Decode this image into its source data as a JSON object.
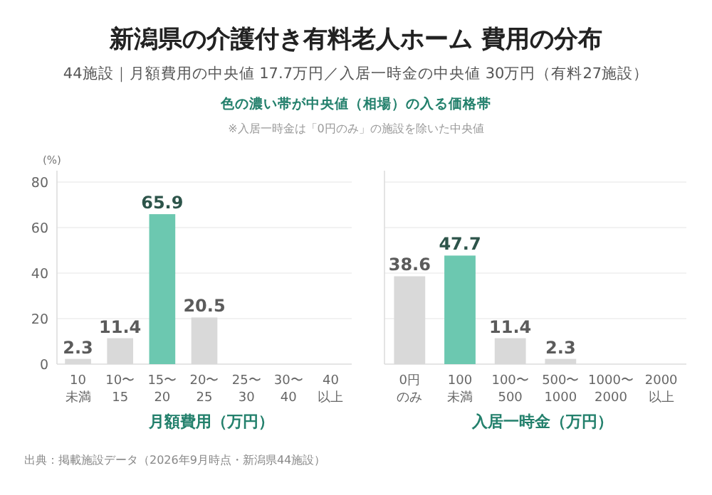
{
  "chart_data": [
    {
      "type": "bar",
      "title": "新潟県の介護付き有料老人ホーム 費用の分布",
      "subtitle": "44施設｜月額費用の中央値 17.7万円／入居一時金の中央値 30万円（有料27施設）",
      "annotations": [
        "色の濃い帯が中央値（相場）の入る価格帯",
        "※入居一時金は「0円のみ」の施設を除いた中央値",
        "出典：掲載施設データ（2026年9月時点・新潟県44施設）"
      ],
      "categories": [
        "10未満",
        "10〜15",
        "15〜20",
        "20〜25",
        "25〜30",
        "30〜40",
        "40以上"
      ],
      "values": [
        2.3,
        11.4,
        65.9,
        20.5,
        0,
        0,
        0
      ],
      "colors": [
        "#d9d9d9",
        "#d9d9d9",
        "#6cc8b0",
        "#d9d9d9",
        "#d9d9d9",
        "#d9d9d9",
        "#d9d9d9"
      ],
      "value_labels": [
        "2.3",
        "11.4",
        "65.9",
        "20.5",
        null,
        null,
        null
      ],
      "xlabel": "月額費用（万円）",
      "ylabel": "(%)",
      "ylim": [
        0,
        80
      ],
      "yticks": [
        0,
        20,
        40,
        60,
        80
      ],
      "grid": "y"
    },
    {
      "type": "bar",
      "categories": [
        "0円のみ",
        "100未満",
        "100〜500",
        "500〜1000",
        "1000〜2000",
        "2000以上"
      ],
      "values": [
        38.6,
        47.7,
        11.4,
        2.3,
        0,
        0
      ],
      "colors": [
        "#d9d9d9",
        "#6cc8b0",
        "#d9d9d9",
        "#d9d9d9",
        "#d9d9d9",
        "#d9d9d9"
      ],
      "value_labels": [
        "38.6",
        "47.7",
        "11.4",
        "2.3",
        null,
        null
      ],
      "xlabel": "入居一時金（万円）",
      "ylim": [
        0,
        80
      ],
      "yticks": [
        0,
        20,
        40,
        60,
        80
      ],
      "grid": "y",
      "tick_labels": "x"
    }
  ]
}
